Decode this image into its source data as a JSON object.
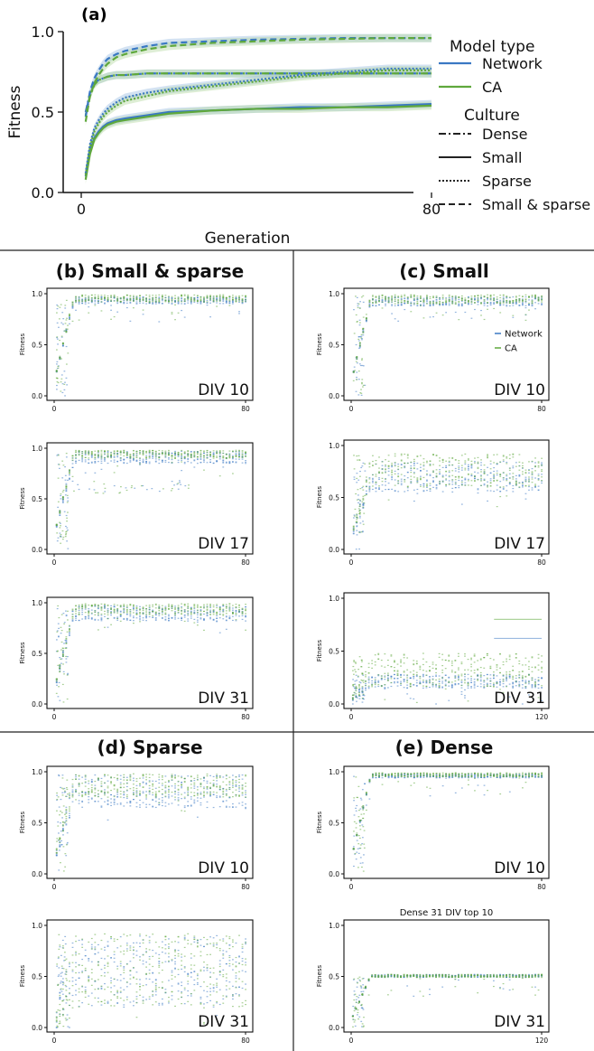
{
  "chart_data": [
    {
      "type": "line",
      "panel": "(a)",
      "xlabel": "Generation",
      "ylabel": "Fitness",
      "xlim": [
        0,
        80
      ],
      "ylim": [
        0.0,
        1.0
      ],
      "xticks": [
        "0",
        "80"
      ],
      "yticks": [
        "0.0",
        "0.5",
        "1.0"
      ],
      "legend": {
        "placement": "right",
        "model_title": "Model type",
        "models": [
          {
            "name": "Network",
            "color": "#3a78c3"
          },
          {
            "name": "CA",
            "color": "#5fa83c"
          }
        ],
        "culture_title": "Culture",
        "cultures": [
          {
            "name": "Dense",
            "style": "dashdot"
          },
          {
            "name": "Small",
            "style": "solid"
          },
          {
            "name": "Sparse",
            "style": "dotted"
          },
          {
            "name": "Small & sparse",
            "style": "dashed"
          }
        ]
      },
      "x": [
        1,
        2,
        3,
        4,
        5,
        6,
        8,
        10,
        15,
        20,
        30,
        40,
        50,
        60,
        70,
        80
      ],
      "series": [
        {
          "model": "Network",
          "culture": "Dense",
          "values": [
            0.5,
            0.62,
            0.68,
            0.7,
            0.71,
            0.72,
            0.73,
            0.73,
            0.74,
            0.74,
            0.74,
            0.74,
            0.74,
            0.74,
            0.74,
            0.74
          ]
        },
        {
          "model": "CA",
          "culture": "Dense",
          "values": [
            0.48,
            0.6,
            0.67,
            0.7,
            0.71,
            0.72,
            0.73,
            0.73,
            0.74,
            0.74,
            0.74,
            0.74,
            0.74,
            0.74,
            0.74,
            0.74
          ]
        },
        {
          "model": "Network",
          "culture": "Small",
          "values": [
            0.1,
            0.26,
            0.34,
            0.38,
            0.41,
            0.43,
            0.45,
            0.46,
            0.48,
            0.5,
            0.51,
            0.52,
            0.53,
            0.53,
            0.54,
            0.55
          ]
        },
        {
          "model": "CA",
          "culture": "Small",
          "values": [
            0.08,
            0.24,
            0.33,
            0.37,
            0.4,
            0.42,
            0.44,
            0.45,
            0.47,
            0.49,
            0.51,
            0.52,
            0.52,
            0.53,
            0.53,
            0.54
          ]
        },
        {
          "model": "Network",
          "culture": "Sparse",
          "values": [
            0.12,
            0.3,
            0.4,
            0.45,
            0.49,
            0.52,
            0.56,
            0.59,
            0.62,
            0.64,
            0.67,
            0.7,
            0.73,
            0.75,
            0.77,
            0.77
          ]
        },
        {
          "model": "CA",
          "culture": "Sparse",
          "values": [
            0.11,
            0.28,
            0.38,
            0.43,
            0.47,
            0.5,
            0.54,
            0.57,
            0.6,
            0.63,
            0.66,
            0.69,
            0.72,
            0.74,
            0.76,
            0.76
          ]
        },
        {
          "model": "Network",
          "culture": "Small & sparse",
          "values": [
            0.47,
            0.63,
            0.71,
            0.76,
            0.8,
            0.83,
            0.86,
            0.88,
            0.91,
            0.93,
            0.94,
            0.95,
            0.955,
            0.96,
            0.96,
            0.96
          ]
        },
        {
          "model": "CA",
          "culture": "Small & sparse",
          "values": [
            0.44,
            0.6,
            0.68,
            0.73,
            0.77,
            0.8,
            0.84,
            0.86,
            0.89,
            0.91,
            0.93,
            0.94,
            0.95,
            0.955,
            0.96,
            0.96
          ]
        }
      ]
    },
    {
      "type": "scatter",
      "panel": "(b)",
      "title": "(b) Small & sparse",
      "label": "DIV 10",
      "ylabel": "Fitness",
      "xlim": [
        0,
        80
      ],
      "xticks": [
        "0",
        "80"
      ],
      "ylim": [
        0.0,
        1.0
      ],
      "yticks": [
        "0.0",
        "0.5",
        "1.0"
      ],
      "legend": null,
      "network_band": [
        0.9,
        0.97
      ],
      "ca_band": [
        0.92,
        0.99
      ]
    },
    {
      "type": "scatter",
      "panel": "(b)",
      "label": "DIV 17",
      "ylabel": "Fitness",
      "xlim": [
        0,
        80
      ],
      "xticks": [
        "0",
        "80"
      ],
      "ylim": [
        0.0,
        1.0
      ],
      "yticks": [
        "0.0",
        "0.5",
        "1.0"
      ],
      "network_band": [
        0.85,
        0.97
      ],
      "ca_band": [
        0.9,
        0.98
      ],
      "extra_band": [
        0.55,
        0.68
      ]
    },
    {
      "type": "scatter",
      "panel": "(b)",
      "label": "DIV 31",
      "ylabel": "Fitness",
      "xlim": [
        0,
        80
      ],
      "xticks": [
        "0",
        "80"
      ],
      "ylim": [
        0.0,
        1.0
      ],
      "yticks": [
        "0.0",
        "0.5",
        "1.0"
      ],
      "network_band": [
        0.82,
        0.97
      ],
      "ca_band": [
        0.88,
        0.99
      ]
    },
    {
      "type": "scatter",
      "panel": "(c)",
      "title": "(c) Small",
      "label": "DIV 10",
      "ylabel": "Fitness",
      "xlim": [
        0,
        80
      ],
      "xticks": [
        "0",
        "80"
      ],
      "ylim": [
        0.0,
        1.0
      ],
      "yticks": [
        "0.0",
        "0.5",
        "1.0"
      ],
      "legend": {
        "placement": "right",
        "entries": [
          {
            "name": "Network",
            "color": "#3a78c3"
          },
          {
            "name": "CA",
            "color": "#5fa83c"
          }
        ]
      },
      "network_band": [
        0.88,
        0.97
      ],
      "ca_band": [
        0.9,
        0.99
      ]
    },
    {
      "type": "scatter",
      "panel": "(c)",
      "label": "DIV 17",
      "ylabel": "Fitness",
      "xlim": [
        0,
        80
      ],
      "xticks": [
        "0",
        "80"
      ],
      "ylim": [
        0.0,
        1.0
      ],
      "yticks": [
        "0.0",
        "0.5",
        "1.0"
      ],
      "network_band": [
        0.55,
        0.85
      ],
      "ca_band": [
        0.6,
        0.92
      ]
    },
    {
      "type": "scatter",
      "panel": "(c)",
      "label": "DIV 31",
      "ylabel": "Fitness",
      "xlim": [
        0,
        120
      ],
      "xticks": [
        "0",
        "120"
      ],
      "ylim": [
        0.0,
        1.0
      ],
      "yticks": [
        "0.0",
        "0.5",
        "1.0"
      ],
      "network_band": [
        0.15,
        0.28
      ],
      "ca_band": [
        0.16,
        0.48
      ],
      "outliers": [
        0.8,
        0.62
      ]
    },
    {
      "type": "scatter",
      "panel": "(d)",
      "title": "(d) Sparse",
      "label": "DIV 10",
      "ylabel": "Fitness",
      "xlim": [
        0,
        80
      ],
      "xticks": [
        "0",
        "80"
      ],
      "ylim": [
        0.0,
        1.0
      ],
      "yticks": [
        "0.0",
        "0.5",
        "1.0"
      ],
      "network_band": [
        0.65,
        0.97
      ],
      "ca_band": [
        0.75,
        0.98
      ]
    },
    {
      "type": "scatter",
      "panel": "(d)",
      "label": "DIV 31",
      "ylabel": "Fitness",
      "xlim": [
        0,
        80
      ],
      "xticks": [
        "0",
        "80"
      ],
      "ylim": [
        0.0,
        1.0
      ],
      "yticks": [
        "0.0",
        "0.5",
        "1.0"
      ],
      "network_band": [
        0.2,
        0.9
      ],
      "ca_band": [
        0.2,
        0.92
      ]
    },
    {
      "type": "scatter",
      "panel": "(e)",
      "title": "(e) Dense",
      "label": "DIV 10",
      "ylabel": "Fitness",
      "xlim": [
        0,
        80
      ],
      "xticks": [
        "0",
        "80"
      ],
      "ylim": [
        0.0,
        1.0
      ],
      "yticks": [
        "0.0",
        "0.5",
        "1.0"
      ],
      "network_band": [
        0.94,
        0.98
      ],
      "ca_band": [
        0.95,
        0.99
      ]
    },
    {
      "type": "scatter",
      "panel": "(e)",
      "subtitle": "Dense 31 DIV  top 10",
      "label": "DIV 31",
      "ylabel": "Fitness",
      "xlim": [
        0,
        120
      ],
      "xticks": [
        "0",
        "120"
      ],
      "ylim": [
        0.0,
        1.0
      ],
      "yticks": [
        "0.0",
        "0.5",
        "1.0"
      ],
      "network_band": [
        0.49,
        0.52
      ],
      "ca_band": [
        0.49,
        0.52
      ]
    }
  ],
  "colors": {
    "network": "#3a78c3",
    "ca": "#5fa83c",
    "band_network": "#9dbfe3",
    "band_ca": "#b6d9a2",
    "axis": "#111111",
    "divider": "#222222"
  }
}
